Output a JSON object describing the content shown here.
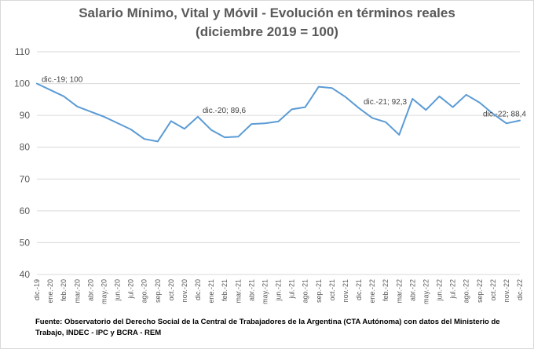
{
  "title_line1": "Salario Mínimo, Vital y Móvil - Evolución en términos reales",
  "title_line2": "(diciembre 2019 = 100)",
  "source_note": "Fuente: Observatorio del Derecho Social de la Central de Trabajadores de la Argentina (CTA Autónoma) con datos del Ministerio de Trabajo, INDEC - IPC y BCRA - REM",
  "colors": {
    "line": "#5b9bd5",
    "grid": "#d9d9d9",
    "text": "#595959",
    "title": "#595959"
  },
  "chart_data": {
    "type": "line",
    "title": "Salario Mínimo, Vital y Móvil - Evolución en términos reales (diciembre 2019 = 100)",
    "xlabel": "",
    "ylabel": "",
    "ylim": [
      40,
      110
    ],
    "yticks": [
      40,
      50,
      60,
      70,
      80,
      90,
      100,
      110
    ],
    "grid": true,
    "legend": "none",
    "categories": [
      "dic.-19",
      "ene.-20",
      "feb.-20",
      "mar.-20",
      "abr.-20",
      "may.-20",
      "jun.-20",
      "jul.-20",
      "ago.-20",
      "sep.-20",
      "oct.-20",
      "nov.-20",
      "dic.-20",
      "ene.-21",
      "feb.-21",
      "mar.-21",
      "abr.-21",
      "may.-21",
      "jun.-21",
      "jul.-21",
      "ago.-21",
      "sep.-21",
      "oct.-21",
      "nov.-21",
      "dic.-21",
      "ene.-22",
      "feb.-22",
      "mar.-22",
      "abr.-22",
      "may.-22",
      "jun.-22",
      "jul.-22",
      "ago.-22",
      "sep.-22",
      "oct.-22",
      "nov.-22",
      "dic.-22"
    ],
    "series": [
      {
        "values": [
          100,
          98,
          96,
          92.8,
          91.2,
          89.6,
          87.6,
          85.6,
          82.6,
          81.8,
          88.2,
          85.8,
          89.6,
          85.4,
          83.1,
          83.3,
          87.3,
          87.5,
          88.1,
          91.9,
          92.6,
          99,
          98.6,
          95.8,
          92.3,
          89.2,
          87.9,
          83.9,
          95.2,
          91.7,
          96,
          92.6,
          96.5,
          94,
          90.5,
          87.5,
          88.4
        ]
      }
    ],
    "annotations": [
      {
        "index": 0,
        "text": "dic.-19; 100"
      },
      {
        "index": 12,
        "text": "dic.-20; 89,6"
      },
      {
        "index": 24,
        "text": "dic.-21; 92,3"
      },
      {
        "index": 36,
        "text": "dic.-22; 88,4"
      }
    ]
  }
}
